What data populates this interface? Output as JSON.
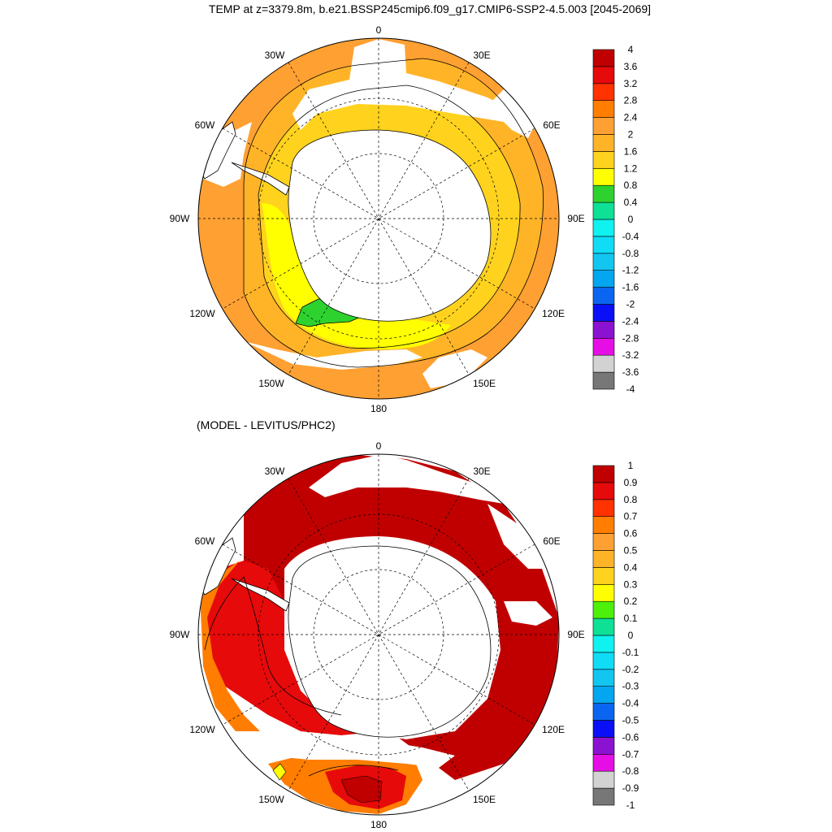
{
  "title": "TEMP at z=3379.8m, b.e21.BSSP245cmip6.f09_g17.CMIP6-SSP2-4.5.003 [2045-2069]",
  "subtitle": "(MODEL - LEVITUS/PHC2)",
  "lon_labels": {
    "l0": "0",
    "l30e": "30E",
    "l60e": "60E",
    "l90e": "90E",
    "l120e": "120E",
    "l150e": "150E",
    "l180": "180",
    "l150w": "150W",
    "l120w": "120W",
    "l90w": "90W",
    "l60w": "60W",
    "l30w": "30W"
  },
  "colorbar_top": {
    "colors": [
      "#777777",
      "#d2d2d2",
      "#e60ee6",
      "#8c12d2",
      "#0a10f6",
      "#0a66f0",
      "#04a6f0",
      "#12c6f0",
      "#10dcf6",
      "#10f2f0",
      "#0ee096",
      "#2ed22e",
      "#ffff00",
      "#ffd21e",
      "#ffb428",
      "#ffa032",
      "#ff7d00",
      "#ff3200",
      "#e60a0a",
      "#c00000"
    ],
    "labels": [
      "-4",
      "-3.6",
      "-3.2",
      "-2.8",
      "-2.4",
      "-2",
      "-1.6",
      "-1.2",
      "-0.8",
      "-0.4",
      "0",
      "0.4",
      "0.8",
      "1.2",
      "1.6",
      "2",
      "2.4",
      "2.8",
      "3.2",
      "3.6",
      "4"
    ]
  },
  "colorbar_bottom": {
    "colors": [
      "#777777",
      "#d2d2d2",
      "#e60ee6",
      "#8c12d2",
      "#0a10f6",
      "#0a66f0",
      "#04a6f0",
      "#12c6f0",
      "#10dcf6",
      "#10f2f0",
      "#0ee096",
      "#4cf00a",
      "#ffff00",
      "#ffd21e",
      "#ffb428",
      "#ffa032",
      "#ff7d00",
      "#ff3200",
      "#e60a0a",
      "#c00000"
    ],
    "labels": [
      "-1",
      "-0.9",
      "-0.8",
      "-0.7",
      "-0.6",
      "-0.5",
      "-0.4",
      "-0.3",
      "-0.2",
      "-0.1",
      "0",
      "0.1",
      "0.2",
      "0.3",
      "0.4",
      "0.5",
      "0.6",
      "0.7",
      "0.8",
      "0.9",
      "1"
    ]
  }
}
